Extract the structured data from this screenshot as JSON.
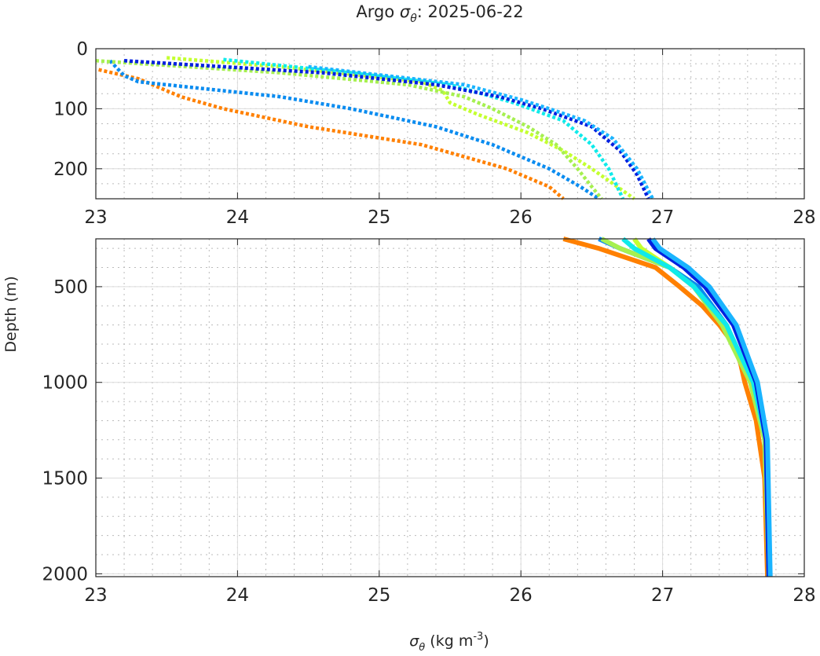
{
  "chart_data": {
    "type": "scatter",
    "title_prefix": "Argo ",
    "title_symbol": "σ",
    "title_sub": "θ",
    "title_suffix": ": 2025-06-22",
    "xlabel_symbol": "σ",
    "xlabel_sub": "θ",
    "xlabel_units": " (kg m",
    "xlabel_exp": "-3",
    "xlabel_close": ")",
    "ylabel": "Depth (m)",
    "xlim": [
      23,
      28
    ],
    "xticks": [
      "23",
      "24",
      "25",
      "26",
      "27",
      "28"
    ],
    "panels": [
      {
        "name": "upper",
        "ylim": [
          0,
          250
        ],
        "yticks": [
          0,
          100,
          200
        ],
        "ytick_labels": [
          "0",
          "100",
          "200"
        ]
      },
      {
        "name": "lower",
        "ylim": [
          250,
          2015
        ],
        "yticks": [
          500,
          1000,
          1500,
          2000
        ],
        "ytick_labels": [
          "500",
          "1000",
          "1500",
          "2000"
        ]
      }
    ],
    "grid": true,
    "series": [
      {
        "name": "profile-orange",
        "color": "#ff8000",
        "depth": [
          35,
          50,
          80,
          100,
          130,
          160,
          200,
          230,
          250,
          300,
          400,
          500,
          600,
          700,
          800,
          900,
          1000,
          1200,
          1500,
          2015
        ],
        "sigma": [
          23.02,
          23.3,
          23.6,
          23.9,
          24.5,
          25.3,
          25.9,
          26.2,
          26.3,
          26.55,
          26.95,
          27.12,
          27.28,
          27.4,
          27.5,
          27.55,
          27.58,
          27.66,
          27.72,
          27.74
        ]
      },
      {
        "name": "profile-blue",
        "color": "#0a8cf0",
        "depth": [
          20,
          45,
          55,
          65,
          80,
          100,
          130,
          160,
          200,
          230,
          250,
          300,
          400,
          500,
          700,
          1000,
          1300,
          2015
        ],
        "sigma": [
          23.1,
          23.2,
          23.3,
          23.7,
          24.3,
          24.8,
          25.4,
          25.8,
          26.2,
          26.42,
          26.55,
          26.7,
          27.05,
          27.25,
          27.45,
          27.63,
          27.72,
          27.75
        ]
      },
      {
        "name": "profile-lime",
        "color": "#c4ff30",
        "depth": [
          15,
          30,
          45,
          55,
          70,
          90,
          110,
          140,
          170,
          200,
          230,
          250,
          300,
          400,
          500,
          700,
          1000,
          1300,
          2015
        ],
        "sigma": [
          23.5,
          24.3,
          24.9,
          25.3,
          25.45,
          25.5,
          25.7,
          26.05,
          26.3,
          26.5,
          26.68,
          26.8,
          26.85,
          27.05,
          27.22,
          27.42,
          27.62,
          27.72,
          27.75
        ]
      },
      {
        "name": "profile-green",
        "color": "#a6f050",
        "depth": [
          20,
          40,
          60,
          80,
          100,
          130,
          160,
          200,
          230,
          250,
          300,
          400,
          500,
          700,
          1000,
          1300,
          2015
        ],
        "sigma": [
          23.0,
          24.3,
          25.2,
          25.6,
          25.8,
          26.05,
          26.25,
          26.4,
          26.5,
          26.57,
          26.7,
          27.05,
          27.22,
          27.42,
          27.62,
          27.72,
          27.75
        ]
      },
      {
        "name": "profile-cyan",
        "color": "#10eaea",
        "depth": [
          18,
          40,
          60,
          90,
          120,
          160,
          200,
          250,
          300,
          400,
          500,
          700,
          1000,
          1300,
          2015
        ],
        "sigma": [
          23.9,
          24.8,
          25.5,
          25.95,
          26.3,
          26.5,
          26.62,
          26.72,
          26.8,
          27.05,
          27.22,
          27.45,
          27.64,
          27.73,
          27.75
        ]
      },
      {
        "name": "profile-darkblue",
        "color": "#0020e0",
        "depth": [
          20,
          40,
          60,
          80,
          100,
          130,
          170,
          210,
          250,
          300,
          400,
          500,
          700,
          1000,
          1300,
          2015
        ],
        "sigma": [
          23.2,
          24.6,
          25.4,
          25.85,
          26.15,
          26.5,
          26.7,
          26.82,
          26.9,
          26.95,
          27.15,
          27.3,
          27.5,
          27.66,
          27.73,
          27.75
        ]
      },
      {
        "name": "profile-skyblue",
        "color": "#1ab4ff",
        "depth": [
          30,
          60,
          85,
          100,
          120,
          150,
          200,
          250,
          300,
          400,
          500,
          700,
          1000,
          1300,
          2015
        ],
        "sigma": [
          24.5,
          25.6,
          26.0,
          26.2,
          26.45,
          26.65,
          26.82,
          26.93,
          26.98,
          27.18,
          27.33,
          27.52,
          27.67,
          27.74,
          27.76
        ]
      }
    ]
  }
}
